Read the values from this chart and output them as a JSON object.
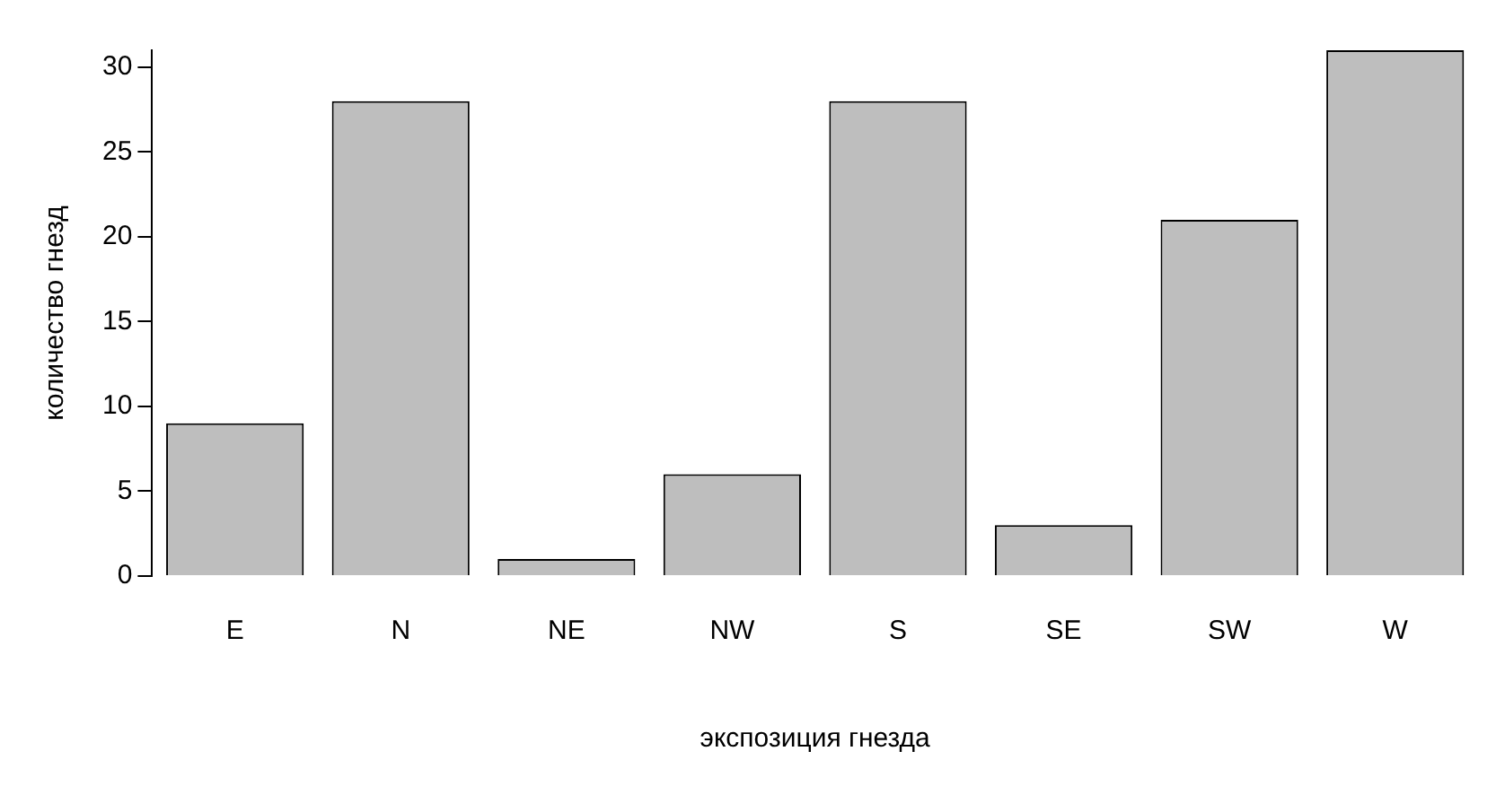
{
  "chart_data": {
    "type": "bar",
    "xlabel": "экспозиция гнезда",
    "ylabel": "количество гнезд",
    "categories": [
      "E",
      "N",
      "NE",
      "NW",
      "S",
      "SE",
      "SW",
      "W"
    ],
    "values": [
      9,
      28,
      1,
      6,
      28,
      3,
      21,
      31
    ],
    "color": "#bebebe",
    "ylim": [
      0,
      31
    ],
    "yticks": [
      0,
      5,
      10,
      15,
      20,
      25,
      30
    ],
    "grid": false,
    "legend": false
  }
}
